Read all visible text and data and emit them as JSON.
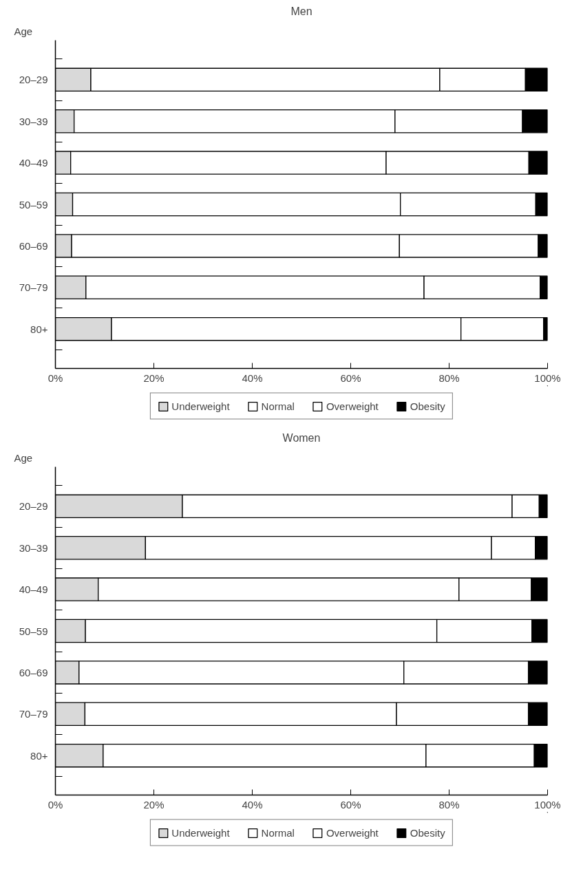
{
  "chart_data": [
    {
      "type": "bar",
      "orientation": "horizontal",
      "stacked": true,
      "title": "Men",
      "ylabel": "Age",
      "categories": [
        "20–29",
        "30–39",
        "40–49",
        "50–59",
        "60–69",
        "70–79",
        "80+"
      ],
      "series": [
        {
          "name": "Underweight",
          "color": "#d9d9d9",
          "values": [
            7.2,
            3.8,
            3.1,
            3.5,
            3.3,
            6.2,
            11.4
          ]
        },
        {
          "name": "Normal",
          "color": "#ffffff",
          "values": [
            70.9,
            65.2,
            64.1,
            66.6,
            66.6,
            68.7,
            71.0
          ]
        },
        {
          "name": "Overweight",
          "color": "#ffffff",
          "values": [
            17.4,
            25.9,
            29.0,
            27.5,
            28.2,
            23.6,
            16.8
          ]
        },
        {
          "name": "Obesity",
          "color": "#000000",
          "values": [
            4.5,
            5.1,
            3.8,
            2.4,
            1.9,
            1.5,
            0.8
          ]
        }
      ],
      "xlim": [
        0,
        100
      ],
      "xticks": [
        {
          "value": 0,
          "label": "0%"
        },
        {
          "value": 20,
          "label": "20%"
        },
        {
          "value": 40,
          "label": "40%"
        },
        {
          "value": 60,
          "label": "60%"
        },
        {
          "value": 80,
          "label": "80%"
        },
        {
          "value": 100,
          "label": "100%"
        }
      ],
      "grid": false,
      "legend": "bottom"
    },
    {
      "type": "bar",
      "orientation": "horizontal",
      "stacked": true,
      "title": "Women",
      "ylabel": "Age",
      "categories": [
        "20–29",
        "30–39",
        "40–49",
        "50–59",
        "60–69",
        "70–79",
        "80+"
      ],
      "series": [
        {
          "name": "Underweight",
          "color": "#d9d9d9",
          "values": [
            25.8,
            18.3,
            8.7,
            6.1,
            4.8,
            6.0,
            9.7
          ]
        },
        {
          "name": "Normal",
          "color": "#ffffff",
          "values": [
            67.0,
            70.3,
            73.3,
            71.4,
            66.0,
            63.3,
            65.6
          ]
        },
        {
          "name": "Overweight",
          "color": "#ffffff",
          "values": [
            5.5,
            8.9,
            14.7,
            19.3,
            25.3,
            26.8,
            22.0
          ]
        },
        {
          "name": "Obesity",
          "color": "#000000",
          "values": [
            1.7,
            2.5,
            3.3,
            3.2,
            3.9,
            3.9,
            2.7
          ]
        }
      ],
      "xlim": [
        0,
        100
      ],
      "xticks": [
        {
          "value": 0,
          "label": "0%"
        },
        {
          "value": 20,
          "label": "20%"
        },
        {
          "value": 40,
          "label": "40%"
        },
        {
          "value": 60,
          "label": "60%"
        },
        {
          "value": 80,
          "label": "80%"
        },
        {
          "value": 100,
          "label": "100%"
        }
      ],
      "grid": false,
      "legend": "bottom"
    }
  ]
}
